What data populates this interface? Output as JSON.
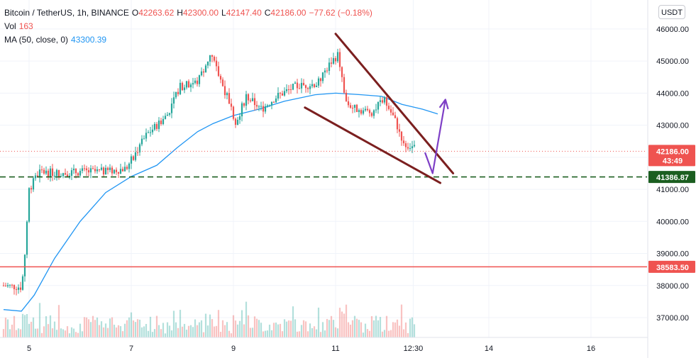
{
  "legend": {
    "symbol": "Bitcoin / TetherUS, 1h, BINANCE",
    "o_label": "O",
    "o_value": "42263.62",
    "h_label": "H",
    "h_value": "42300.00",
    "l_label": "L",
    "l_value": "42147.40",
    "c_label": "C",
    "c_value": "42186.00",
    "change": "−77.62 (−0.18%)",
    "vol_label": "Vol",
    "vol_value": "163",
    "ma_label": "MA (50, close, 0)",
    "ma_value": "43300.39"
  },
  "currency_button": "USDT",
  "colors": {
    "up": "#26a69a",
    "down": "#ef5350",
    "ma": "#2196f3",
    "trendline": "#7b1f1f",
    "support": "#1b5e20",
    "resistance": "#ef5350",
    "arrow": "#7e3fc6",
    "grid": "#f0f3fa"
  },
  "chart_data": {
    "type": "candlestick",
    "symbol": "Bitcoin / TetherUS",
    "interval": "1h",
    "exchange": "BINANCE",
    "y_range": [
      36500,
      46500
    ],
    "y_ticks": [
      46000,
      45000,
      44000,
      43000,
      42000,
      41000,
      40000,
      39000,
      38000,
      37000
    ],
    "y_tick_labels": [
      "46000.00",
      "45000.00",
      "44000.00",
      "43000.00",
      "42000.00",
      "41000.00",
      "40000.00",
      "39000.00",
      "38000.00",
      "37000.00"
    ],
    "x_ticks": [
      {
        "label": "5",
        "day": 5
      },
      {
        "label": "7",
        "day": 7
      },
      {
        "label": "9",
        "day": 9
      },
      {
        "label": "11",
        "day": 11
      },
      {
        "label": "12:30",
        "day": 12.52
      },
      {
        "label": "14",
        "day": 14
      },
      {
        "label": "16",
        "day": 16
      }
    ],
    "price_path": [
      [
        4.5,
        38000
      ],
      [
        4.85,
        37950
      ],
      [
        4.9,
        38600
      ],
      [
        5.0,
        41000
      ],
      [
        5.2,
        41550
      ],
      [
        5.6,
        41500
      ],
      [
        6.0,
        41550
      ],
      [
        6.5,
        41550
      ],
      [
        6.9,
        41650
      ],
      [
        7.3,
        42700
      ],
      [
        7.7,
        43300
      ],
      [
        7.95,
        44200
      ],
      [
        8.3,
        44350
      ],
      [
        8.55,
        45200
      ],
      [
        8.85,
        44000
      ],
      [
        9.05,
        43100
      ],
      [
        9.25,
        43900
      ],
      [
        9.55,
        43500
      ],
      [
        9.85,
        43900
      ],
      [
        10.2,
        44200
      ],
      [
        10.65,
        44300
      ],
      [
        10.9,
        44950
      ],
      [
        11.05,
        45200
      ],
      [
        11.2,
        43700
      ],
      [
        11.4,
        43500
      ],
      [
        11.7,
        43400
      ],
      [
        11.95,
        43800
      ],
      [
        12.15,
        43200
      ],
      [
        12.35,
        42400
      ],
      [
        12.55,
        42300
      ]
    ],
    "volume_range": [
      0,
      163
    ],
    "ma": {
      "name": "MA (50, close, 0)",
      "points": [
        [
          4.5,
          37250
        ],
        [
          4.85,
          37200
        ],
        [
          5.1,
          37700
        ],
        [
          5.5,
          38850
        ],
        [
          6.0,
          40000
        ],
        [
          6.5,
          40900
        ],
        [
          7.0,
          41400
        ],
        [
          7.5,
          41750
        ],
        [
          7.9,
          42300
        ],
        [
          8.3,
          42800
        ],
        [
          8.6,
          43050
        ],
        [
          9.0,
          43300
        ],
        [
          9.5,
          43500
        ],
        [
          10.0,
          43750
        ],
        [
          10.6,
          43950
        ],
        [
          11.0,
          44000
        ],
        [
          11.5,
          43950
        ],
        [
          11.9,
          43900
        ],
        [
          12.3,
          43650
        ],
        [
          12.7,
          43500
        ],
        [
          13.0,
          43350
        ]
      ]
    },
    "last_price": {
      "value": 42186.0,
      "label": "42186.00",
      "countdown": "43:49"
    },
    "support": {
      "value": 41386.87,
      "label": "41386.87"
    },
    "resistance": {
      "value": 38583.5,
      "label": "38583.50"
    },
    "drawings": {
      "upper_trendline": [
        [
          11.0,
          45850
        ],
        [
          13.3,
          41500
        ]
      ],
      "lower_trendline": [
        [
          10.4,
          43550
        ],
        [
          13.05,
          41200
        ]
      ],
      "arrow_path": [
        [
          12.75,
          42150
        ],
        [
          12.9,
          41500
        ],
        [
          13.15,
          43800
        ]
      ]
    }
  }
}
